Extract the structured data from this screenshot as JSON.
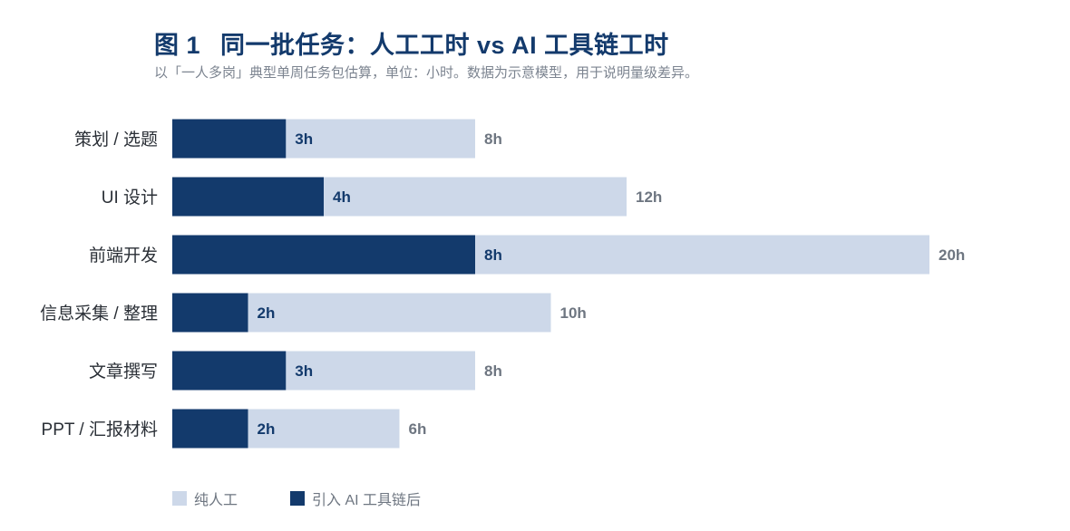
{
  "header": {
    "figure_no": "图 1",
    "title": "同一批任务：人工工时 vs AI 工具链工时",
    "subtitle": "以「一人多岗」典型单周任务包估算，单位：小时。数据为示意模型，用于说明量级差异。"
  },
  "chart_data": {
    "type": "bar",
    "orientation": "horizontal",
    "categories": [
      "策划 / 选题",
      "UI 设计",
      "前端开发",
      "信息采集 / 整理",
      "文章撰写",
      "PPT / 汇报材料"
    ],
    "series": [
      {
        "name": "纯人工",
        "values": [
          8,
          12,
          20,
          10,
          8,
          6
        ],
        "color": "#cdd8e9"
      },
      {
        "name": "引入 AI 工具链后",
        "values": [
          3,
          4,
          8,
          2,
          3,
          2
        ],
        "color": "#133a6c"
      }
    ],
    "value_suffix": "h",
    "xlim": [
      0,
      20
    ],
    "grid": false,
    "legend_position": "bottom-left"
  },
  "legend": {
    "items": [
      {
        "label": "纯人工",
        "color": "#cdd8e9"
      },
      {
        "label": "引入 AI 工具链后",
        "color": "#133a6c"
      }
    ]
  }
}
